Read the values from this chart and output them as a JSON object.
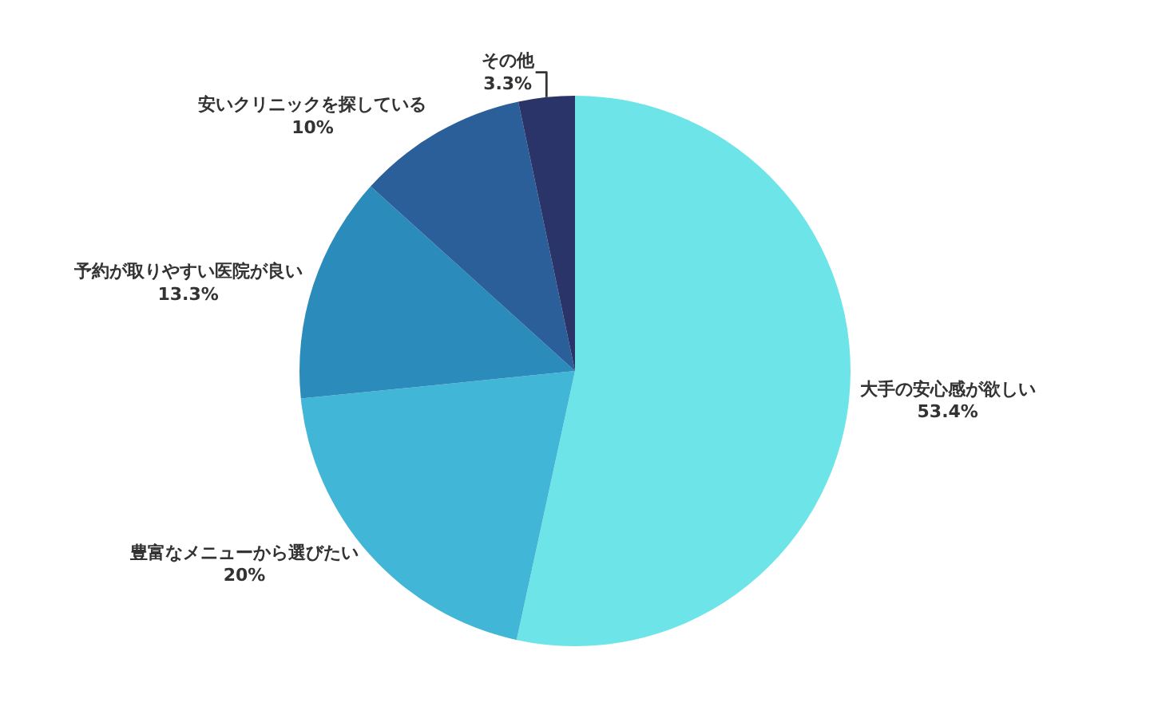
{
  "chart_data": {
    "type": "pie",
    "categories": [
      "大手の安心感が欲しい",
      "豊富なメニューから選びたい",
      "予約が取りやすい医院が良い",
      "安いクリニックを探している",
      "その他"
    ],
    "values": [
      53.4,
      20,
      13.3,
      10,
      3.3
    ],
    "value_labels": [
      "53.4%",
      "20%",
      "13.3%",
      "10%",
      "3.3%"
    ],
    "colors": [
      "#6ce4e8",
      "#42b6d6",
      "#2b8bbb",
      "#2b5f9a",
      "#2a3468"
    ],
    "legend": false
  }
}
